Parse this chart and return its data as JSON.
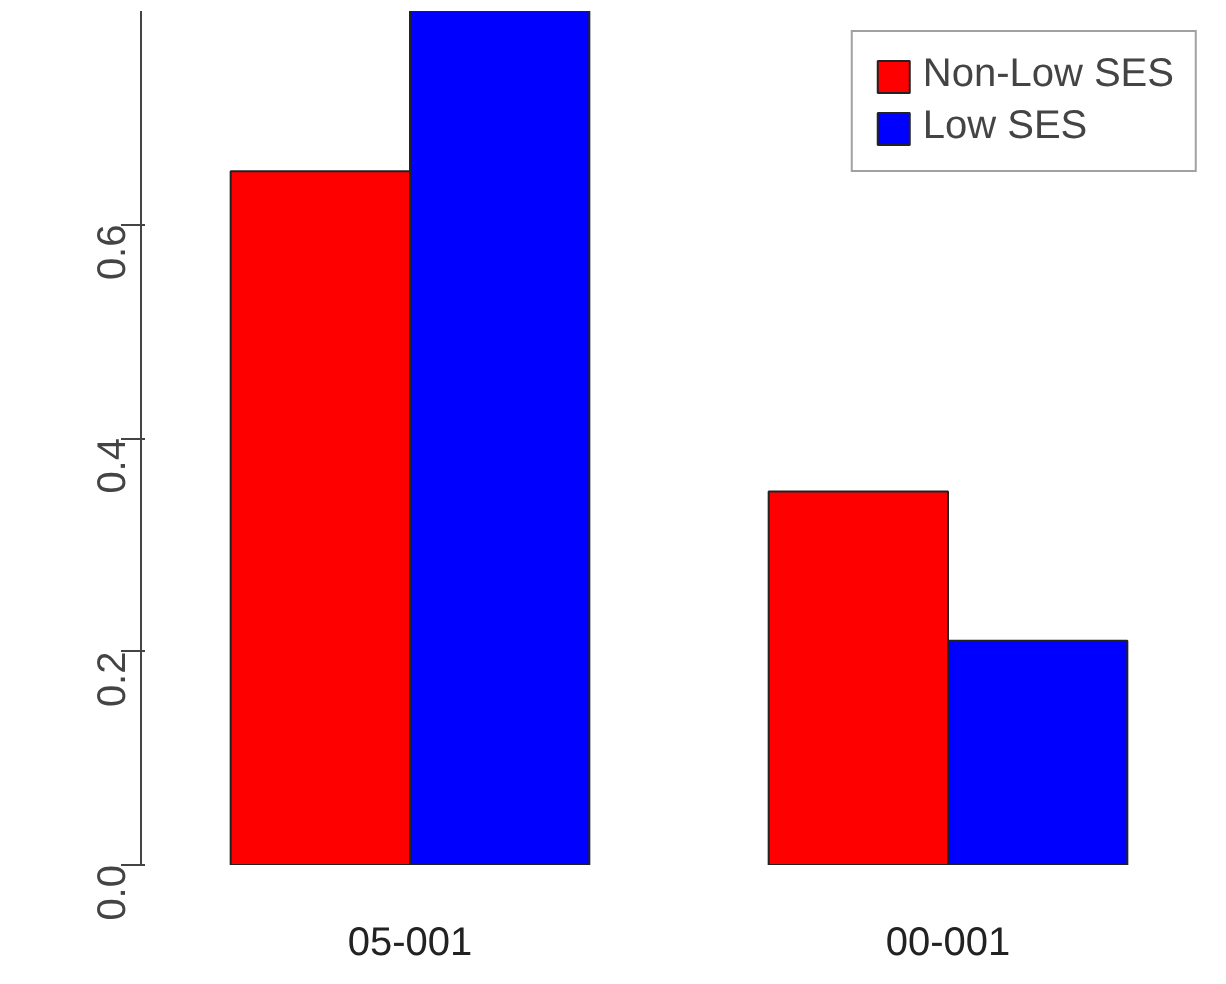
{
  "chart_data": {
    "type": "bar",
    "categories": [
      "05-001",
      "00-001"
    ],
    "series": [
      {
        "name": "Non-Low SES",
        "color": "#ff0000",
        "values": [
          0.65,
          0.35
        ]
      },
      {
        "name": "Low SES",
        "color": "#0000ff",
        "values": [
          0.8,
          0.21
        ]
      }
    ],
    "ylim": [
      0,
      0.8
    ],
    "yticks": [
      {
        "value": 0,
        "label": "0.0"
      },
      {
        "value": 0.2,
        "label": "0.2"
      },
      {
        "value": 0.4,
        "label": "0.4"
      },
      {
        "value": 0.6,
        "label": "0.6"
      }
    ],
    "grid": false,
    "legend": "top right"
  }
}
